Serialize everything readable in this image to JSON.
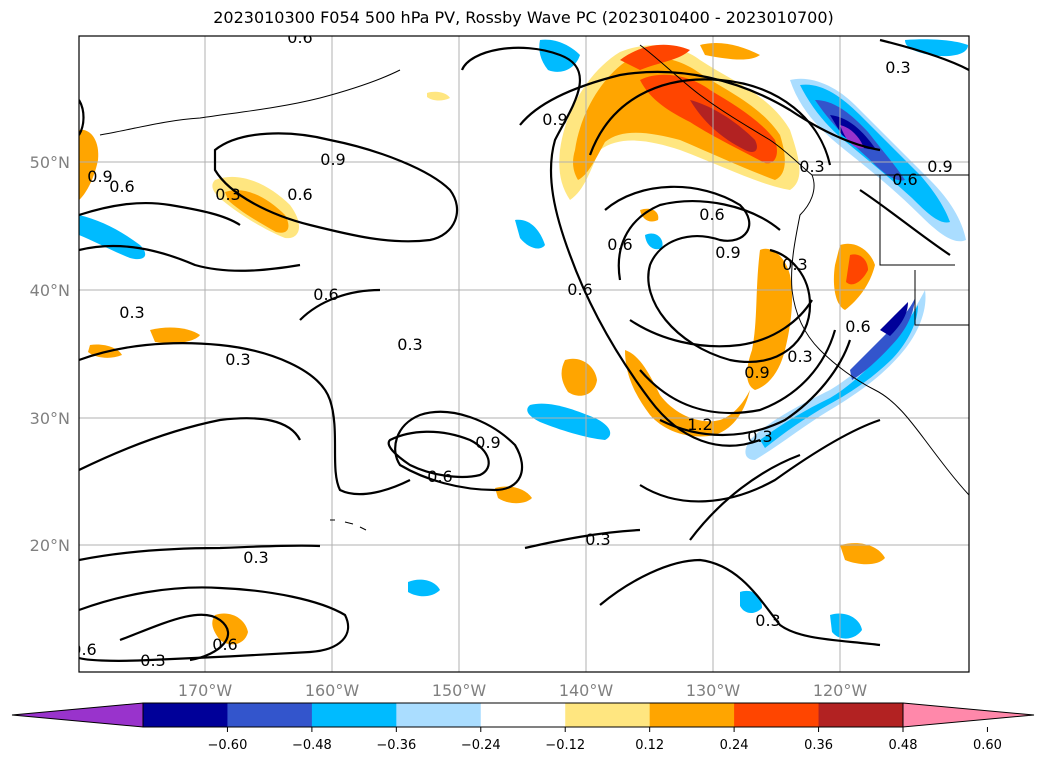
{
  "title": "2023010300 F054 500 hPa PV, Rossby Wave PC (2023010400 - 2023010700)",
  "lat_labels": [
    "50°N",
    "40°N",
    "30°N",
    "20°N"
  ],
  "lon_labels": [
    "170°W",
    "160°W",
    "150°W",
    "140°W",
    "130°W",
    "120°W"
  ],
  "contour_labels": [
    "0.9",
    "0.3",
    "0.6",
    "0.9",
    "0.6",
    "0.3",
    "0.6",
    "0.3",
    "0.9",
    "0.6",
    "0.6",
    "0.3",
    "0.3",
    "0.3",
    "0.9",
    "0.6",
    "0.6",
    "0.3",
    "0.6",
    "0.3",
    "0.9",
    "1.2",
    "0.3",
    "0.9",
    "0.6",
    "0.3",
    "0.3",
    "0.6",
    "0.3",
    "0.6",
    "0.3",
    "0.9",
    "0.6"
  ],
  "colorbar": {
    "ticks": [
      "−0.60",
      "−0.48",
      "−0.36",
      "−0.24",
      "−0.12",
      "0.12",
      "0.24",
      "0.36",
      "0.48",
      "0.60"
    ],
    "colors": [
      "#9933cc",
      "#000099",
      "#3355cc",
      "#00bbff",
      "#aaddff",
      "#ffffff",
      "#ffe680",
      "#ffa500",
      "#ff4500",
      "#b22222",
      "#ff88aa"
    ],
    "extend_min_color": "#9933cc",
    "extend_max_color": "#ff88aa"
  }
}
